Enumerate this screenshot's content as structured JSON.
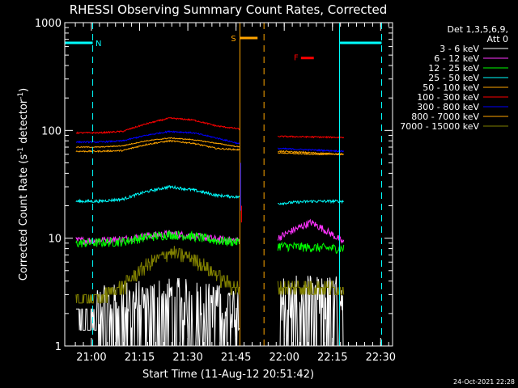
{
  "chart_data": {
    "type": "line",
    "title": "RHESSI Observing Summary Count Rates, Corrected",
    "xlabel": "Start Time (11-Aug-12 20:51:42)",
    "ylabel_main": "Corrected Count Rate (s",
    "ylabel_sup1": "-1",
    "ylabel_mid": " detector",
    "ylabel_sup2": "-1",
    "ylabel_end": ")",
    "x_unit": "minutes since 20:51:42",
    "xlim": [
      0,
      102
    ],
    "ylim": [
      1,
      1000
    ],
    "y_scale": "log",
    "x_ticks": [
      {
        "label": "21:00",
        "x": 8.3
      },
      {
        "label": "21:15",
        "x": 23.3
      },
      {
        "label": "21:30",
        "x": 38.3
      },
      {
        "label": "21:45",
        "x": 53.3
      },
      {
        "label": "22:00",
        "x": 68.3
      },
      {
        "label": "22:15",
        "x": 83.3
      },
      {
        "label": "22:30",
        "x": 98.3
      }
    ],
    "y_ticks": [
      {
        "label": "1",
        "v": 1
      },
      {
        "label": "10",
        "v": 10
      },
      {
        "label": "100",
        "v": 100
      },
      {
        "label": "1000",
        "v": 1000
      }
    ],
    "legend_title": "Det 1,3,5,6,9,",
    "legend_subtitle": "Att 0",
    "legend_position": "right",
    "data_gap": [
      54.5,
      66.3
    ],
    "series": [
      {
        "name": "3 - 6 keV",
        "color": "#ffffff",
        "base": [
          1.5,
          1.6,
          1.8,
          2.0,
          2.2,
          2.0,
          1.7,
          1.6
        ],
        "after": [
          2.5,
          2.2,
          1.5
        ],
        "noise": 0.8
      },
      {
        "name": "6 - 12 keV",
        "color": "#ff33ff",
        "base": [
          9.5,
          9.6,
          9.8,
          10.5,
          11.0,
          10.5,
          9.8,
          9.5
        ],
        "after": [
          10.0,
          14.0,
          9.0
        ],
        "noise": 0.08
      },
      {
        "name": "12 - 25 keV",
        "color": "#00ff00",
        "base": [
          9.0,
          9.1,
          9.3,
          10.2,
          10.8,
          10.4,
          9.5,
          9.2
        ],
        "after": [
          8.5,
          8.2,
          8.0
        ],
        "noise": 0.1
      },
      {
        "name": "25 - 50 keV",
        "color": "#00ffff",
        "base": [
          22,
          22,
          23,
          27,
          30,
          28,
          25,
          24
        ],
        "after": [
          21,
          22,
          22
        ],
        "noise": 0.03
      },
      {
        "name": "50 - 100 keV",
        "color": "#ffa500",
        "base": [
          64,
          64,
          65,
          74,
          80,
          76,
          68,
          66
        ],
        "after": [
          64,
          62,
          60
        ],
        "noise": 0.015
      },
      {
        "name": "100 - 300 keV",
        "color": "#ff0000",
        "base": [
          95,
          95,
          98,
          115,
          130,
          125,
          110,
          103
        ],
        "after": [
          88,
          87,
          86
        ],
        "noise": 0.015
      },
      {
        "name": "300 - 800 keV",
        "color": "#0000ff",
        "base": [
          78,
          78,
          80,
          90,
          98,
          95,
          85,
          75
        ],
        "after": [
          68,
          66,
          64
        ],
        "noise": 0.015
      },
      {
        "name": "800 - 7000 keV",
        "color": "#ffa500",
        "base": [
          70,
          70,
          72,
          80,
          85,
          82,
          76,
          70
        ],
        "after": [
          62,
          60,
          60
        ],
        "noise": 0.01
      },
      {
        "name": "7000 - 15000 keV",
        "color": "#808000",
        "base": [
          2.6,
          2.8,
          3.5,
          5.5,
          7.5,
          6.5,
          4.5,
          3.2
        ],
        "after": [
          3.5,
          3.5,
          3.5
        ],
        "noise": 0.15,
        "step": true
      }
    ],
    "annotations": [
      {
        "label": "N",
        "x": 10.5,
        "y": 650,
        "color": "#00ffff"
      },
      {
        "label": "S",
        "x": 52.5,
        "y": 720,
        "color": "#ffa500"
      },
      {
        "label": "F",
        "x": 72.0,
        "y": 480,
        "color": "#ff0000"
      }
    ],
    "night_intervals": [
      [
        0,
        8.7
      ],
      [
        85.5,
        98.6
      ]
    ],
    "saa_interval": [
      54.5,
      60.0
    ],
    "flare_interval": [
      73.5,
      77.5
    ],
    "vlines_cyan_solid": [
      0,
      85.5
    ],
    "vlines_cyan_dashed": [
      8.7,
      98.6
    ],
    "vlines_orange_solid": [
      54.5,
      89.0
    ],
    "vlines_orange_dashed": [
      62.0,
      89.0
    ],
    "timestamp": "24-Oct-2021 22:28"
  }
}
